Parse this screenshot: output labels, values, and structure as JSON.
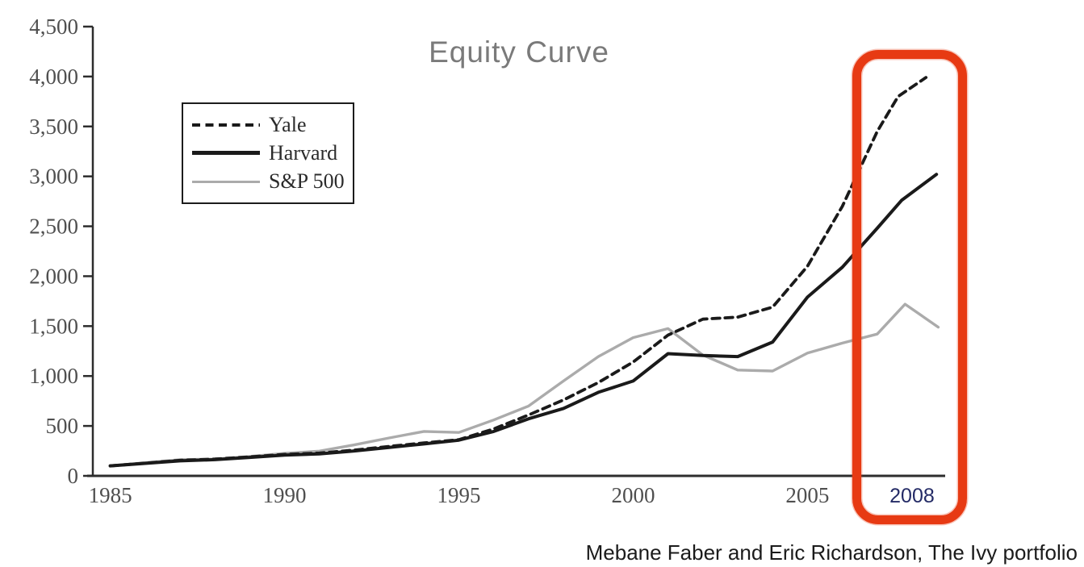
{
  "chart": {
    "title": "Equity Curve",
    "caption": "Mebane Faber and Eric Richardson, The Ivy portfolio"
  },
  "chart_data": {
    "type": "line",
    "title": "Equity Curve",
    "xlabel": "",
    "ylabel": "",
    "xlim": [
      1984.5,
      2008.95
    ],
    "ylim": [
      0,
      4500
    ],
    "grid": false,
    "legend_position": "upper-left-inside",
    "y_ticks": [
      {
        "value": 0,
        "label": "0"
      },
      {
        "value": 500,
        "label": "500"
      },
      {
        "value": 1000,
        "label": "1,000"
      },
      {
        "value": 1500,
        "label": "1,500"
      },
      {
        "value": 2000,
        "label": "2,000"
      },
      {
        "value": 2500,
        "label": "2,500"
      },
      {
        "value": 3000,
        "label": "3,000"
      },
      {
        "value": 3500,
        "label": "3,500"
      },
      {
        "value": 4000,
        "label": "4,000"
      },
      {
        "value": 4500,
        "label": "4,500"
      }
    ],
    "x_ticks": [
      {
        "value": 1985,
        "label": "1985",
        "style": "default"
      },
      {
        "value": 1990,
        "label": "1990",
        "style": "default"
      },
      {
        "value": 1995,
        "label": "1995",
        "style": "default"
      },
      {
        "value": 2000,
        "label": "2000",
        "style": "default"
      },
      {
        "value": 2005,
        "label": "2005",
        "style": "default"
      },
      {
        "value": 2008,
        "label": "2008",
        "style": "highlight"
      }
    ],
    "series": [
      {
        "name": "Yale",
        "color": "#1a1a1a",
        "dash": true,
        "width": 3.8,
        "x": [
          1985,
          1986,
          1987,
          1988,
          1989,
          1990,
          1991,
          1992,
          1993,
          1994,
          1995,
          1996,
          1997,
          1998,
          1999,
          2000,
          2001,
          2002,
          2003,
          2004,
          2005,
          2006,
          2007,
          2007.6,
          2008.4
        ],
        "values": [
          100,
          128,
          155,
          168,
          190,
          215,
          228,
          258,
          295,
          330,
          362,
          470,
          610,
          760,
          935,
          1140,
          1410,
          1570,
          1590,
          1690,
          2100,
          2700,
          3450,
          3800,
          3990
        ]
      },
      {
        "name": "Harvard",
        "color": "#1a1a1a",
        "dash": false,
        "width": 4,
        "x": [
          1985,
          1986,
          1987,
          1988,
          1989,
          1990,
          1991,
          1992,
          1993,
          1994,
          1995,
          1996,
          1997,
          1998,
          1999,
          2000,
          2001,
          2002,
          2003,
          2004,
          2005,
          2006,
          2007,
          2007.7,
          2008.7
        ],
        "values": [
          100,
          125,
          150,
          162,
          185,
          208,
          220,
          250,
          285,
          320,
          358,
          445,
          572,
          675,
          837,
          950,
          1224,
          1205,
          1195,
          1340,
          1790,
          2090,
          2480,
          2760,
          3020
        ]
      },
      {
        "name": "S&P 500",
        "color": "#ababab",
        "dash": false,
        "width": 3.4,
        "x": [
          1985,
          1986,
          1987,
          1988,
          1989,
          1990,
          1991,
          1992,
          1993,
          1994,
          1995,
          1996,
          1997,
          1998,
          1999,
          2000,
          2001,
          2002,
          2003,
          2004,
          2005,
          2006,
          2007,
          2007.8,
          2008.75
        ],
        "values": [
          100,
          132,
          162,
          168,
          195,
          225,
          248,
          310,
          380,
          445,
          435,
          560,
          700,
          950,
          1195,
          1385,
          1475,
          1210,
          1060,
          1050,
          1230,
          1330,
          1420,
          1720,
          1490
        ]
      }
    ],
    "annotations": [
      {
        "type": "hand-drawn-box",
        "highlights": "2008",
        "x_from": 2007,
        "x_to": 2010,
        "full_height": true,
        "color": "#e73a13"
      }
    ]
  }
}
